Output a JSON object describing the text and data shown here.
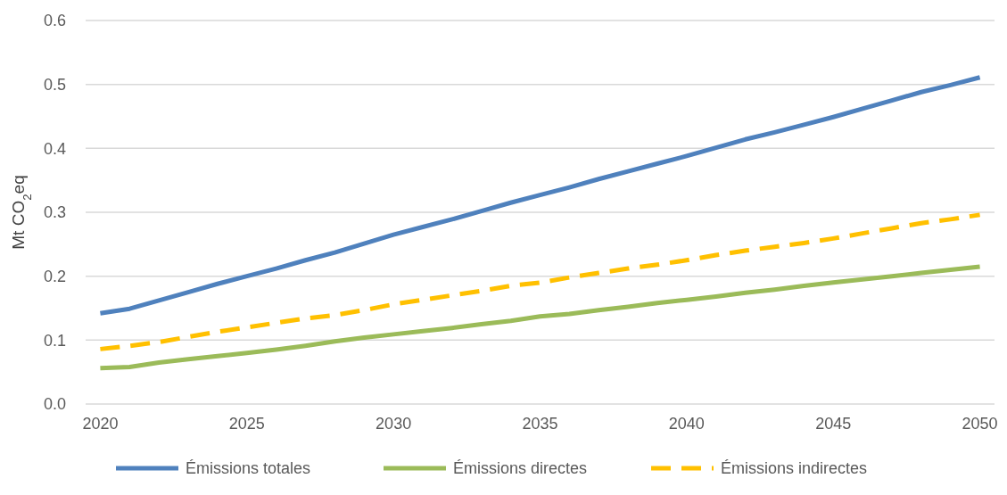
{
  "chart_data": {
    "type": "line",
    "ylabel": "Mt CO$_{2}$eq",
    "x": [
      2020,
      2021,
      2022,
      2023,
      2024,
      2025,
      2026,
      2027,
      2028,
      2029,
      2030,
      2031,
      2032,
      2033,
      2034,
      2035,
      2036,
      2037,
      2038,
      2039,
      2040,
      2041,
      2042,
      2043,
      2044,
      2045,
      2046,
      2047,
      2048,
      2049,
      2050
    ],
    "xlim": [
      2019.5,
      2050.5
    ],
    "xticks": [
      2020,
      2025,
      2030,
      2035,
      2040,
      2045,
      2050
    ],
    "ylim": [
      0,
      0.6
    ],
    "yticks": [
      {
        "value": 0,
        "label": "0.0"
      },
      {
        "value": 0.1,
        "label": "0.1"
      },
      {
        "value": 0.2,
        "label": "0.2"
      },
      {
        "value": 0.3,
        "label": "0.3"
      },
      {
        "value": 0.4,
        "label": "0.4"
      },
      {
        "value": 0.5,
        "label": "0.5"
      },
      {
        "value": 0.6,
        "label": "0.6"
      }
    ],
    "grid": "y",
    "legend": "bottom",
    "marker": "none",
    "series": [
      {
        "name": "Émissions totales",
        "color": "#4f81bd",
        "line_style": "solid",
        "values": [
          0.142,
          0.149,
          0.162,
          0.175,
          0.188,
          0.2,
          0.212,
          0.225,
          0.237,
          0.251,
          0.265,
          0.277,
          0.289,
          0.302,
          0.315,
          0.327,
          0.339,
          0.352,
          0.364,
          0.376,
          0.388,
          0.401,
          0.414,
          0.425,
          0.437,
          0.449,
          0.462,
          0.475,
          0.488,
          0.499,
          0.511
        ]
      },
      {
        "name": "Émissions directes",
        "color": "#9bbb59",
        "line_style": "solid",
        "values": [
          0.056,
          0.058,
          0.065,
          0.07,
          0.075,
          0.08,
          0.085,
          0.091,
          0.098,
          0.104,
          0.109,
          0.114,
          0.119,
          0.125,
          0.13,
          0.137,
          0.141,
          0.147,
          0.152,
          0.158,
          0.163,
          0.168,
          0.174,
          0.179,
          0.185,
          0.19,
          0.195,
          0.2,
          0.205,
          0.21,
          0.215
        ]
      },
      {
        "name": "Émissions indirectes",
        "color": "#ffc000",
        "line_style": "dashed",
        "values": [
          0.086,
          0.091,
          0.097,
          0.105,
          0.113,
          0.12,
          0.127,
          0.134,
          0.139,
          0.147,
          0.156,
          0.163,
          0.17,
          0.177,
          0.185,
          0.19,
          0.198,
          0.205,
          0.212,
          0.218,
          0.225,
          0.233,
          0.24,
          0.246,
          0.252,
          0.259,
          0.267,
          0.275,
          0.283,
          0.289,
          0.296
        ]
      }
    ]
  }
}
